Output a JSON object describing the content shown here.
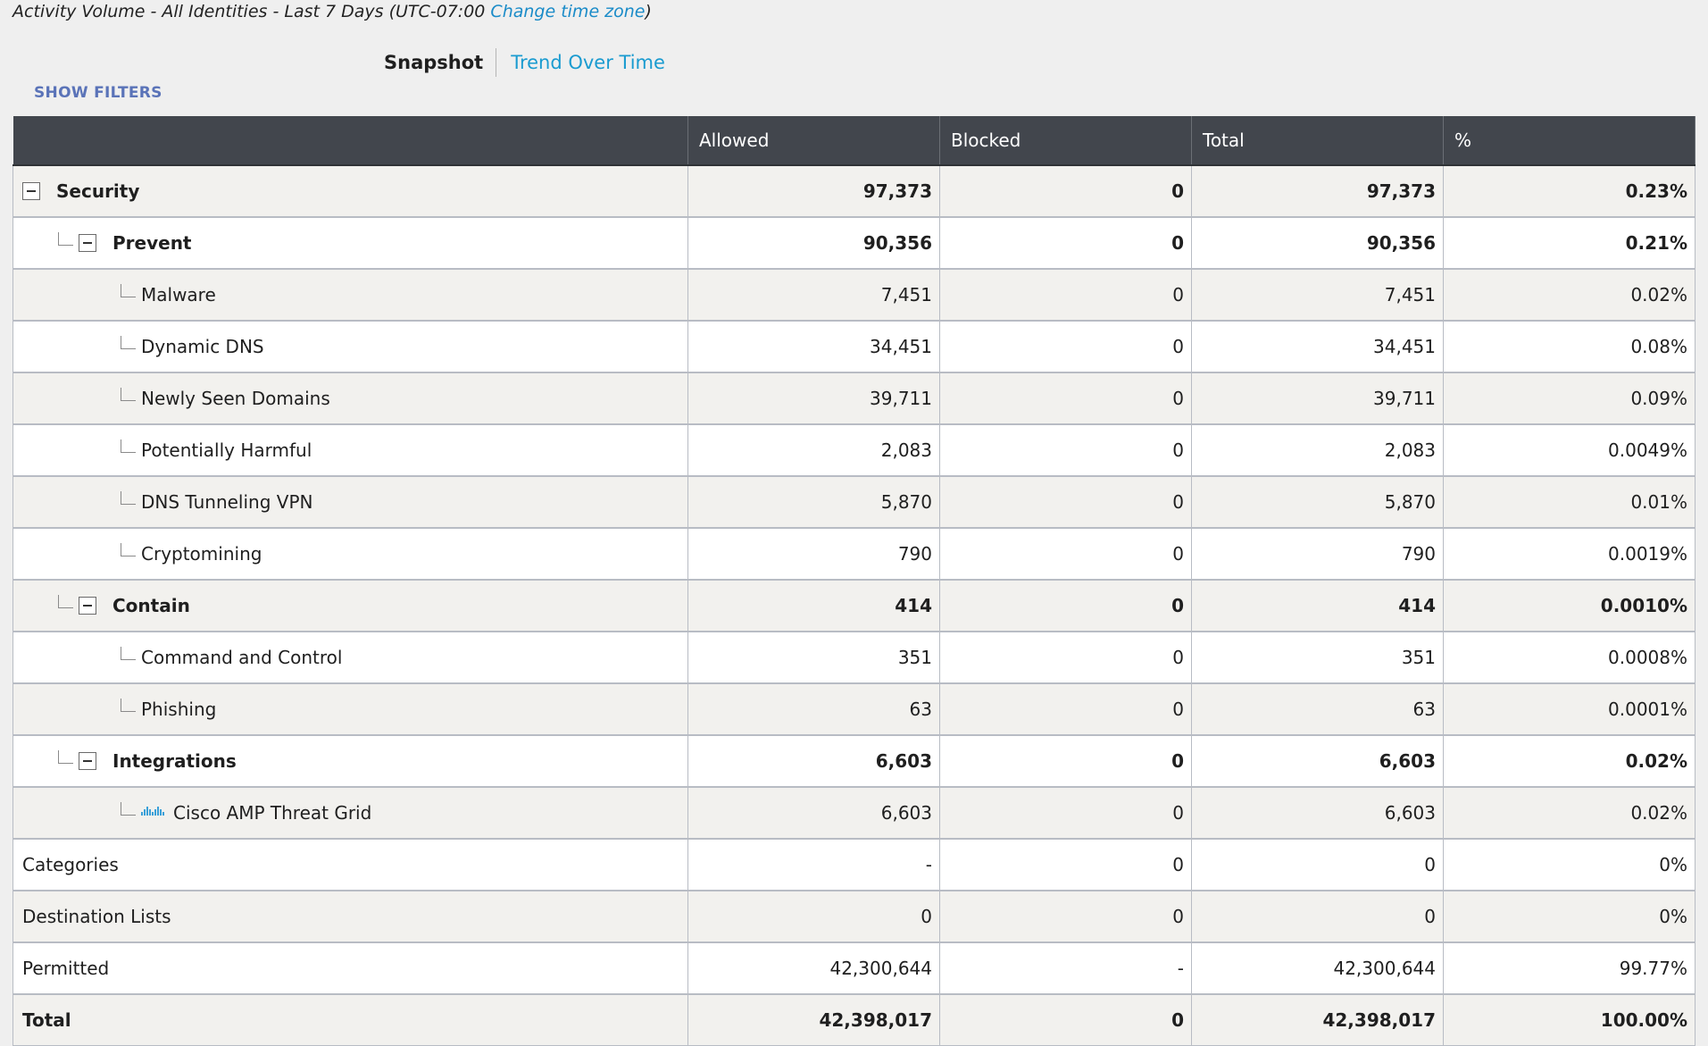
{
  "header": {
    "title": "Activity Volume - All Identities - Last 7 Days (UTC-07:00",
    "tz_link": "Change time zone",
    "close_paren": ")"
  },
  "view_toggle": {
    "snapshot": "Snapshot",
    "trend": "Trend Over Time"
  },
  "filters": {
    "label": "SHOW FILTERS"
  },
  "table": {
    "columns": [
      "",
      "Allowed",
      "Blocked",
      "Total",
      "%"
    ],
    "rows": [
      {
        "label": "Security",
        "level": 0,
        "collapsible": true,
        "bold": true,
        "allowed": "97,373",
        "blocked": "0",
        "total": "97,373",
        "pct": "0.23%"
      },
      {
        "label": "Prevent",
        "level": 1,
        "collapsible": true,
        "bold": true,
        "allowed": "90,356",
        "blocked": "0",
        "total": "90,356",
        "pct": "0.21%"
      },
      {
        "label": "Malware",
        "level": 2,
        "allowed": "7,451",
        "blocked": "0",
        "total": "7,451",
        "pct": "0.02%"
      },
      {
        "label": "Dynamic DNS",
        "level": 2,
        "allowed": "34,451",
        "blocked": "0",
        "total": "34,451",
        "pct": "0.08%"
      },
      {
        "label": "Newly Seen Domains",
        "level": 2,
        "allowed": "39,711",
        "blocked": "0",
        "total": "39,711",
        "pct": "0.09%"
      },
      {
        "label": "Potentially Harmful",
        "level": 2,
        "allowed": "2,083",
        "blocked": "0",
        "total": "2,083",
        "pct": "0.0049%"
      },
      {
        "label": "DNS Tunneling VPN",
        "level": 2,
        "allowed": "5,870",
        "blocked": "0",
        "total": "5,870",
        "pct": "0.01%"
      },
      {
        "label": "Cryptomining",
        "level": 2,
        "allowed": "790",
        "blocked": "0",
        "total": "790",
        "pct": "0.0019%"
      },
      {
        "label": "Contain",
        "level": 1,
        "collapsible": true,
        "bold": true,
        "allowed": "414",
        "blocked": "0",
        "total": "414",
        "pct": "0.0010%"
      },
      {
        "label": "Command and Control",
        "level": 2,
        "allowed": "351",
        "blocked": "0",
        "total": "351",
        "pct": "0.0008%"
      },
      {
        "label": "Phishing",
        "level": 2,
        "allowed": "63",
        "blocked": "0",
        "total": "63",
        "pct": "0.0001%"
      },
      {
        "label": "Integrations",
        "level": 1,
        "collapsible": true,
        "bold": true,
        "allowed": "6,603",
        "blocked": "0",
        "total": "6,603",
        "pct": "0.02%"
      },
      {
        "label": "Cisco AMP Threat Grid",
        "level": 2,
        "logo": "cisco-logo",
        "allowed": "6,603",
        "blocked": "0",
        "total": "6,603",
        "pct": "0.02%"
      },
      {
        "label": "Categories",
        "level": -1,
        "allowed": "-",
        "blocked": "0",
        "total": "0",
        "pct": "0%"
      },
      {
        "label": "Destination Lists",
        "level": -1,
        "allowed": "0",
        "blocked": "0",
        "total": "0",
        "pct": "0%"
      },
      {
        "label": "Permitted",
        "level": -1,
        "allowed": "42,300,644",
        "blocked": "-",
        "total": "42,300,644",
        "pct": "99.77%"
      },
      {
        "label": "Total",
        "level": -1,
        "bold": true,
        "allowed": "42,398,017",
        "blocked": "0",
        "total": "42,398,017",
        "pct": "100.00%"
      }
    ]
  },
  "icons": {
    "collapse": "minus-box-icon",
    "tree": "tree-branch-icon",
    "vendor": "cisco-logo"
  },
  "colors": {
    "header_bg": "#42464d",
    "link": "#1a9bd0",
    "filters": "#5a73b8",
    "odd_row": "#f2f1ee"
  }
}
